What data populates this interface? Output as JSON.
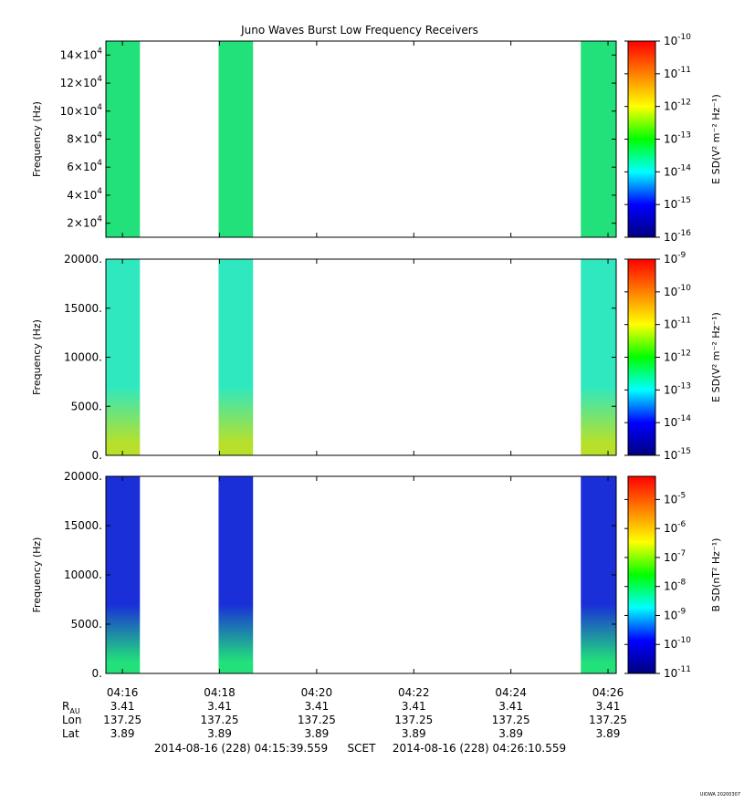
{
  "title": "Juno Waves Burst Low Frequency Receivers",
  "colors": {
    "spectro_green": "#22e07a",
    "spectro_cyan": "#2fe8bf",
    "spectro_blue": "#1a2fd8",
    "colorbar_stops": [
      "#000080",
      "#0000ff",
      "#00ffff",
      "#00ff00",
      "#ffff00",
      "#ff8000",
      "#ff0000"
    ]
  },
  "chart_data": [
    {
      "type": "heatmap",
      "title": "Juno Waves Burst Low Frequency Receivers",
      "ylabel": "Frequency (Hz)",
      "ylim": [
        10000,
        150000
      ],
      "yticks": [
        {
          "base": "2×10",
          "exp": "4",
          "value": 20000
        },
        {
          "base": "4×10",
          "exp": "4",
          "value": 40000
        },
        {
          "base": "6×10",
          "exp": "4",
          "value": 60000
        },
        {
          "base": "8×10",
          "exp": "4",
          "value": 80000
        },
        {
          "base": "10×10",
          "exp": "4",
          "value": 100000
        },
        {
          "base": "12×10",
          "exp": "4",
          "value": 120000
        },
        {
          "base": "14×10",
          "exp": "4",
          "value": 140000
        }
      ],
      "colorbar_label": "E SD(V² m⁻² Hz⁻¹)",
      "colorbar_scale": "log",
      "colorbar_range": [
        -16,
        -10
      ],
      "colorbar_ticks": [
        {
          "exp": "-10",
          "value": -10
        },
        {
          "exp": "-11",
          "value": -11
        },
        {
          "exp": "-12",
          "value": -12
        },
        {
          "exp": "-13",
          "value": -13
        },
        {
          "exp": "-14",
          "value": -14
        },
        {
          "exp": "-15",
          "value": -15
        },
        {
          "exp": "-16",
          "value": -16
        }
      ],
      "bursts": [
        {
          "start_min": 15.65,
          "end_min": 16.36,
          "color": "#22e07a",
          "low_color": "#22e07a"
        },
        {
          "start_min": 17.98,
          "end_min": 18.69,
          "color": "#22e07a",
          "low_color": "#22e07a"
        },
        {
          "start_min": 25.44,
          "end_min": 26.17,
          "color": "#22e07a",
          "low_color": "#22e07a"
        }
      ]
    },
    {
      "type": "heatmap",
      "ylabel": "Frequency (Hz)",
      "ylim": [
        0,
        20000
      ],
      "yticks": [
        {
          "base": "0.",
          "exp": "",
          "value": 0
        },
        {
          "base": "5000.",
          "exp": "",
          "value": 5000
        },
        {
          "base": "10000.",
          "exp": "",
          "value": 10000
        },
        {
          "base": "15000.",
          "exp": "",
          "value": 15000
        },
        {
          "base": "20000.",
          "exp": "",
          "value": 20000
        }
      ],
      "colorbar_label": "E SD(V² m⁻² Hz⁻¹)",
      "colorbar_scale": "log",
      "colorbar_range": [
        -15,
        -9
      ],
      "colorbar_ticks": [
        {
          "exp": "-9",
          "value": -9
        },
        {
          "exp": "-10",
          "value": -10
        },
        {
          "exp": "-11",
          "value": -11
        },
        {
          "exp": "-12",
          "value": -12
        },
        {
          "exp": "-13",
          "value": -13
        },
        {
          "exp": "-14",
          "value": -14
        },
        {
          "exp": "-15",
          "value": -15
        }
      ],
      "bursts": [
        {
          "start_min": 15.65,
          "end_min": 16.36,
          "color": "#2fe8bf",
          "low_color": "#b8e02a"
        },
        {
          "start_min": 17.98,
          "end_min": 18.69,
          "color": "#2fe8bf",
          "low_color": "#b8e02a"
        },
        {
          "start_min": 25.44,
          "end_min": 26.17,
          "color": "#2fe8bf",
          "low_color": "#b8e02a"
        }
      ]
    },
    {
      "type": "heatmap",
      "ylabel": "Frequency (Hz)",
      "ylim": [
        0,
        20000
      ],
      "yticks": [
        {
          "base": "0.",
          "exp": "",
          "value": 0
        },
        {
          "base": "5000.",
          "exp": "",
          "value": 5000
        },
        {
          "base": "10000.",
          "exp": "",
          "value": 10000
        },
        {
          "base": "15000.",
          "exp": "",
          "value": 15000
        },
        {
          "base": "20000.",
          "exp": "",
          "value": 20000
        }
      ],
      "colorbar_label": "B SD(nT² Hz⁻¹)",
      "colorbar_scale": "log",
      "colorbar_range": [
        -11,
        -4.2
      ],
      "colorbar_ticks": [
        {
          "exp": "-5",
          "value": -5
        },
        {
          "exp": "-6",
          "value": -6
        },
        {
          "exp": "-7",
          "value": -7
        },
        {
          "exp": "-8",
          "value": -8
        },
        {
          "exp": "-9",
          "value": -9
        },
        {
          "exp": "-10",
          "value": -10
        },
        {
          "exp": "-11",
          "value": -11
        }
      ],
      "bursts": [
        {
          "start_min": 15.65,
          "end_min": 16.36,
          "color": "#1a2fd8",
          "low_color": "#22e07a"
        },
        {
          "start_min": 17.98,
          "end_min": 18.69,
          "color": "#1a2fd8",
          "low_color": "#22e07a"
        },
        {
          "start_min": 25.44,
          "end_min": 26.17,
          "color": "#1a2fd8",
          "low_color": "#22e07a"
        }
      ]
    }
  ],
  "xaxis": {
    "range_min": [
      15.6593,
      26.1685
    ],
    "ticks": [
      {
        "label": "04:16",
        "value": 16
      },
      {
        "label": "04:18",
        "value": 18
      },
      {
        "label": "04:20",
        "value": 20
      },
      {
        "label": "04:22",
        "value": 22
      },
      {
        "label": "04:24",
        "value": 24
      },
      {
        "label": "04:26",
        "value": 26
      }
    ]
  },
  "ephemeris": {
    "rows": [
      {
        "label": "R",
        "sub": "AU",
        "values": [
          "3.41",
          "3.41",
          "3.41",
          "3.41",
          "3.41",
          "3.41"
        ]
      },
      {
        "label": "Lon",
        "sub": "",
        "values": [
          "137.25",
          "137.25",
          "137.25",
          "137.25",
          "137.25",
          "137.25"
        ]
      },
      {
        "label": "Lat",
        "sub": "",
        "values": [
          "3.89",
          "3.89",
          "3.89",
          "3.89",
          "3.89",
          "3.89"
        ]
      }
    ]
  },
  "time_range": {
    "start": "2014-08-16 (228) 04:15:39.559",
    "middle": "SCET",
    "end": "2014-08-16 (228) 04:26:10.559"
  },
  "footer_stamp": "UIOWA 20200307"
}
